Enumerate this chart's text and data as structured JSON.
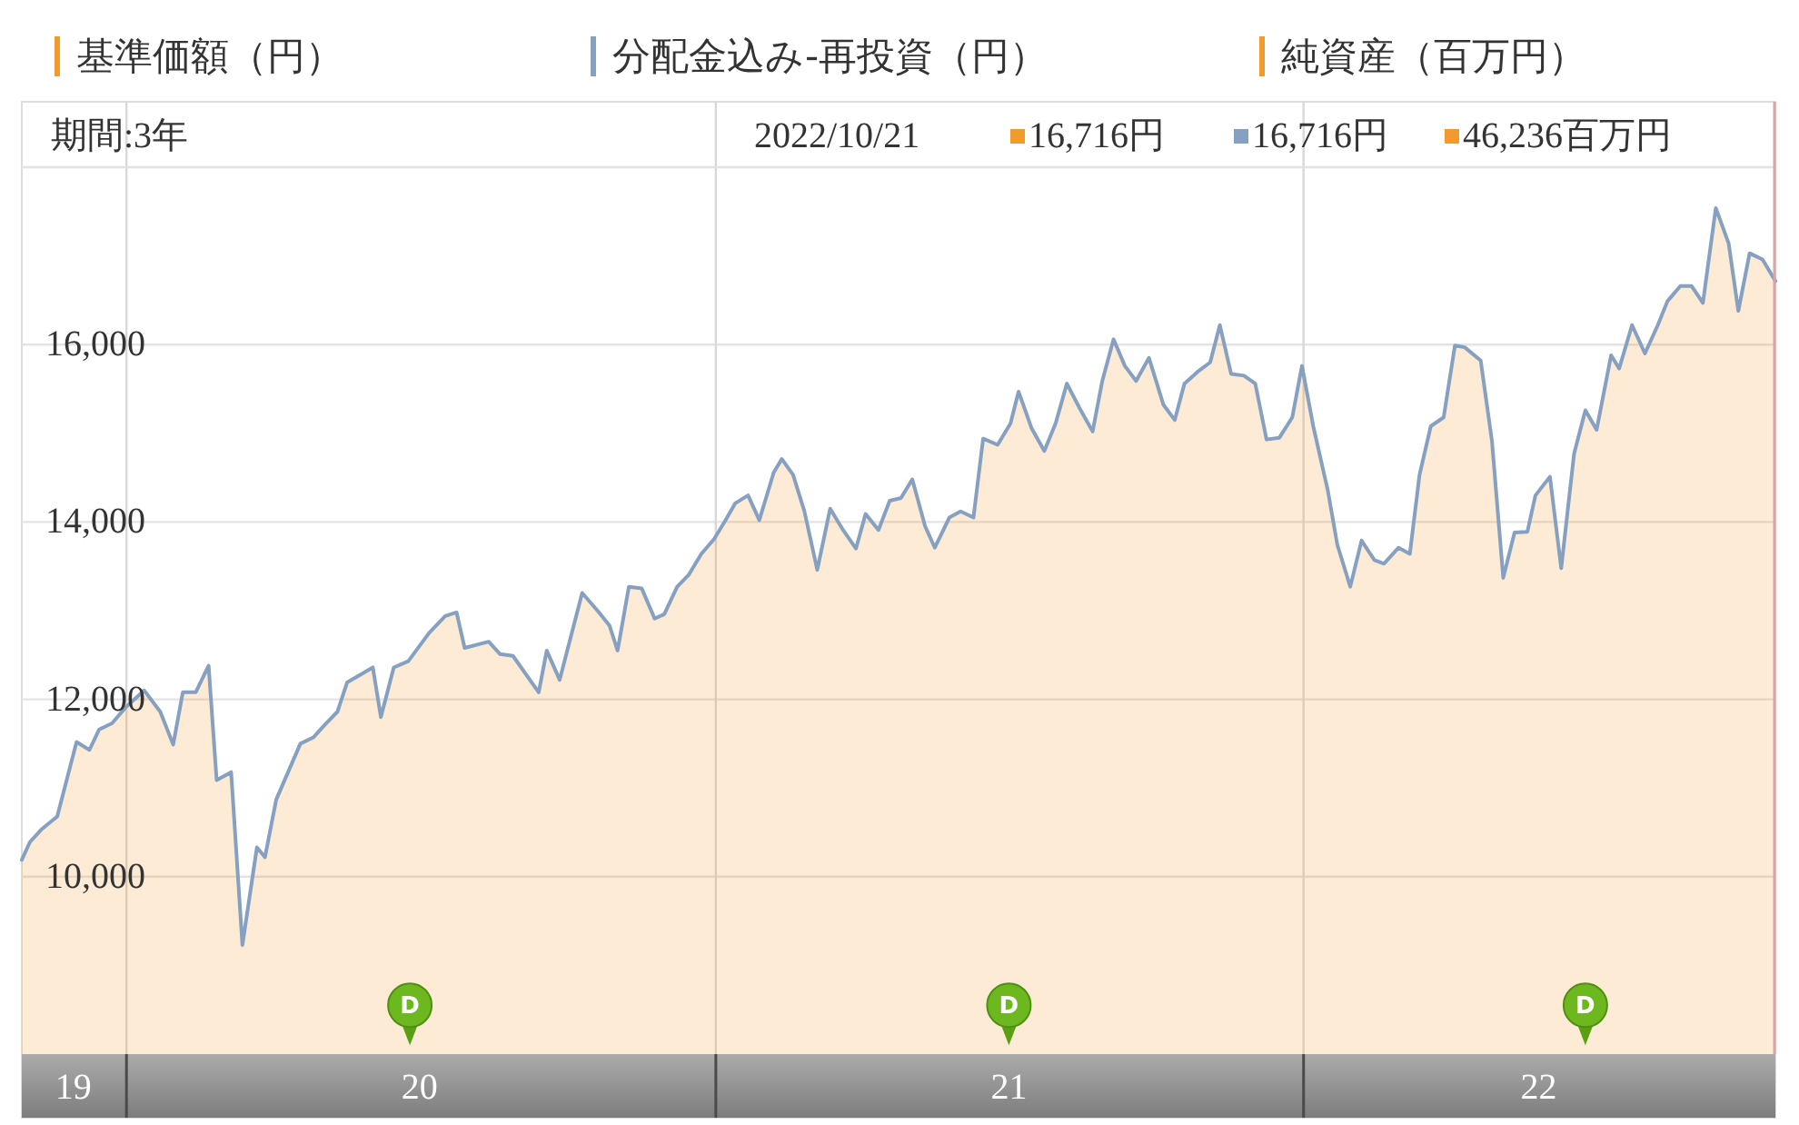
{
  "chart_data": {
    "type": "area",
    "subtitle": "期間:3年",
    "x": [
      "2019-10-28",
      "2019-11-02",
      "2019-11-09",
      "2019-11-19",
      "2019-12-01",
      "2019-12-09",
      "2019-12-15",
      "2019-12-23",
      "2020-01-01",
      "2020-01-12",
      "2020-01-22",
      "2020-01-30",
      "2020-02-05",
      "2020-02-13",
      "2020-02-21",
      "2020-02-26",
      "2020-03-06",
      "2020-03-13",
      "2020-03-22",
      "2020-03-27",
      "2020-04-03",
      "2020-04-18",
      "2020-04-26",
      "2020-05-03",
      "2020-05-11",
      "2020-05-17",
      "2020-06-02",
      "2020-06-07",
      "2020-06-15",
      "2020-06-24",
      "2020-07-07",
      "2020-07-17",
      "2020-07-24",
      "2020-07-29",
      "2020-08-13",
      "2020-08-20",
      "2020-08-28",
      "2020-09-13",
      "2020-09-18",
      "2020-09-26",
      "2020-10-10",
      "2020-10-20",
      "2020-10-27",
      "2020-11-01",
      "2020-11-08",
      "2020-11-16",
      "2020-11-24",
      "2020-11-30",
      "2020-12-08",
      "2020-12-15",
      "2020-12-23",
      "2020-12-31",
      "2021-01-07",
      "2021-01-13",
      "2021-01-21",
      "2021-01-28",
      "2021-02-06",
      "2021-02-11",
      "2021-02-18",
      "2021-02-25",
      "2021-03-05",
      "2021-03-13",
      "2021-03-21",
      "2021-03-29",
      "2021-04-04",
      "2021-04-12",
      "2021-04-19",
      "2021-04-26",
      "2021-05-03",
      "2021-05-11",
      "2021-05-17",
      "2021-05-26",
      "2021-06-02",
      "2021-06-10",
      "2021-06-16",
      "2021-06-25",
      "2021-07-03",
      "2021-07-08",
      "2021-07-16",
      "2021-07-24",
      "2021-07-31",
      "2021-08-07",
      "2021-08-15",
      "2021-08-23",
      "2021-08-29",
      "2021-09-05",
      "2021-09-12",
      "2021-09-19",
      "2021-09-27",
      "2021-10-06",
      "2021-10-13",
      "2021-10-19",
      "2021-10-27",
      "2021-11-04",
      "2021-11-10",
      "2021-11-17",
      "2021-11-25",
      "2021-12-02",
      "2021-12-09",
      "2021-12-17",
      "2021-12-25",
      "2021-12-31",
      "2022-01-07",
      "2022-01-16",
      "2022-01-22",
      "2022-01-30",
      "2022-02-06",
      "2022-02-14",
      "2022-02-20",
      "2022-03-01",
      "2022-03-08",
      "2022-03-14",
      "2022-03-21",
      "2022-03-29",
      "2022-04-05",
      "2022-04-11",
      "2022-04-21",
      "2022-04-28",
      "2022-05-05",
      "2022-05-12",
      "2022-05-20",
      "2022-05-25",
      "2022-06-03",
      "2022-06-10",
      "2022-06-18",
      "2022-06-25",
      "2022-07-02",
      "2022-07-11",
      "2022-07-16",
      "2022-07-24",
      "2022-08-01",
      "2022-08-09",
      "2022-08-15",
      "2022-08-23",
      "2022-08-30",
      "2022-09-06",
      "2022-09-14",
      "2022-09-22",
      "2022-09-28",
      "2022-10-05",
      "2022-10-13",
      "2022-10-21"
    ],
    "series": [
      {
        "name": "基準価額（円）",
        "color": "#f39a2e",
        "values": [
          10190,
          10390,
          10530,
          10680,
          11520,
          11430,
          11660,
          11730,
          11920,
          12100,
          11860,
          11490,
          12080,
          12080,
          12380,
          11090,
          11180,
          9230,
          10330,
          10220,
          10870,
          11500,
          11570,
          11710,
          11860,
          12190,
          12360,
          11800,
          12360,
          12430,
          12750,
          12940,
          12980,
          12580,
          12650,
          12510,
          12490,
          12080,
          12550,
          12220,
          13200,
          12990,
          12830,
          12550,
          13270,
          13250,
          12910,
          12960,
          13270,
          13400,
          13640,
          13810,
          14020,
          14210,
          14300,
          14020,
          14560,
          14710,
          14530,
          14120,
          13460,
          14150,
          13910,
          13700,
          14090,
          13910,
          14240,
          14270,
          14480,
          13950,
          13710,
          14050,
          14120,
          14050,
          14940,
          14870,
          15110,
          15470,
          15060,
          14800,
          15110,
          15560,
          15280,
          15020,
          15590,
          16060,
          15760,
          15590,
          15850,
          15320,
          15150,
          15560,
          15690,
          15800,
          16220,
          15670,
          15650,
          15560,
          14930,
          14950,
          15180,
          15760,
          15080,
          14360,
          13740,
          13270,
          13790,
          13570,
          13530,
          13710,
          13640,
          14530,
          15080,
          15180,
          15990,
          15970,
          15820,
          14910,
          13370,
          13880,
          13890,
          14300,
          14510,
          13480,
          14770,
          15260,
          15040,
          15880,
          15730,
          16220,
          15900,
          16220,
          16490,
          16660,
          16660,
          16470,
          17540,
          17140,
          16380,
          17030,
          16960,
          16716
        ]
      },
      {
        "name": "分配金込み-再投資（円）",
        "type": "line",
        "color": "#86a0c2",
        "values": [
          10190,
          10390,
          10530,
          10680,
          11520,
          11430,
          11660,
          11730,
          11920,
          12100,
          11860,
          11490,
          12080,
          12080,
          12380,
          11090,
          11180,
          9230,
          10330,
          10220,
          10870,
          11500,
          11570,
          11710,
          11860,
          12190,
          12360,
          11800,
          12360,
          12430,
          12750,
          12940,
          12980,
          12580,
          12650,
          12510,
          12490,
          12080,
          12550,
          12220,
          13200,
          12990,
          12830,
          12550,
          13270,
          13250,
          12910,
          12960,
          13270,
          13400,
          13640,
          13810,
          14020,
          14210,
          14300,
          14020,
          14560,
          14710,
          14530,
          14120,
          13460,
          14150,
          13910,
          13700,
          14090,
          13910,
          14240,
          14270,
          14480,
          13950,
          13710,
          14050,
          14120,
          14050,
          14940,
          14870,
          15110,
          15470,
          15060,
          14800,
          15110,
          15560,
          15280,
          15020,
          15590,
          16060,
          15760,
          15590,
          15850,
          15320,
          15150,
          15560,
          15690,
          15800,
          16220,
          15670,
          15650,
          15560,
          14930,
          14950,
          15180,
          15760,
          15080,
          14360,
          13740,
          13270,
          13790,
          13570,
          13530,
          13710,
          13640,
          14530,
          15080,
          15180,
          15990,
          15970,
          15820,
          14910,
          13370,
          13880,
          13890,
          14300,
          14510,
          13480,
          14770,
          15260,
          15040,
          15880,
          15730,
          16220,
          15900,
          16220,
          16490,
          16660,
          16660,
          16470,
          17540,
          17140,
          16380,
          17030,
          16960,
          16716
        ]
      },
      {
        "name": "純資産（百万円）",
        "type": "line",
        "color": "#f39a2e",
        "values": [
          null,
          null,
          null,
          null,
          null,
          null,
          null,
          null,
          null,
          null,
          null,
          null,
          null,
          null,
          null,
          null,
          null,
          null,
          null,
          null,
          null,
          null,
          null,
          null,
          null,
          null,
          null,
          null,
          null,
          null,
          null,
          null,
          null,
          null,
          null,
          null,
          null,
          null,
          null,
          null,
          null,
          null,
          null,
          null,
          null,
          null,
          null,
          null,
          null,
          null,
          null,
          null,
          null,
          null,
          null,
          null,
          null,
          null,
          null,
          null,
          null,
          null,
          null,
          null,
          null,
          null,
          null,
          null,
          null,
          null,
          null,
          null,
          null,
          null,
          null,
          null,
          null,
          null,
          null,
          null,
          null,
          null,
          null,
          null,
          null,
          null,
          null,
          null,
          null,
          null,
          null,
          null,
          null,
          null,
          null,
          null,
          null,
          null,
          null,
          null,
          null,
          null,
          null,
          null,
          null,
          null,
          null,
          null,
          null,
          null,
          null,
          null,
          null,
          null,
          null,
          null,
          null,
          null,
          null,
          null,
          null,
          null,
          null,
          null,
          null,
          null,
          null,
          null,
          null,
          null,
          null,
          null,
          null,
          null,
          null,
          null,
          null,
          null,
          null,
          null,
          null,
          null
        ]
      }
    ],
    "xlim": [
      "2019-10-28",
      "2022-10-21"
    ],
    "xticks": [
      {
        "value": "2019-11-29",
        "label": "19"
      },
      {
        "value": "2020-01-01",
        "label": null
      },
      {
        "value": "2020-07-01",
        "label": "20"
      },
      {
        "value": "2021-01-01",
        "label": null
      },
      {
        "value": "2021-07-02",
        "label": "21"
      },
      {
        "value": "2022-01-01",
        "label": null
      },
      {
        "value": "2022-05-27",
        "label": "22"
      }
    ],
    "ylim": [
      8000,
      18000
    ],
    "yticks": [
      {
        "value": 10000,
        "label": "10,000"
      },
      {
        "value": 12000,
        "label": "12,000"
      },
      {
        "value": 14000,
        "label": "14,000"
      },
      {
        "value": 16000,
        "label": "16,000"
      }
    ],
    "grid": true,
    "legend": "top",
    "ref_lines": [
      {
        "axis": "x",
        "value": "2022-10-21",
        "color": "#dba3a3"
      }
    ],
    "annotations": [
      "2022/10/21",
      "16,716円",
      "16,716円",
      "46,236百万円",
      {
        "text": "D",
        "x": "2020-06-25",
        "y": 8100
      },
      {
        "text": "D",
        "x": "2021-07-02",
        "y": 8100
      },
      {
        "text": "D",
        "x": "2022-06-25",
        "y": 8100
      }
    ]
  }
}
